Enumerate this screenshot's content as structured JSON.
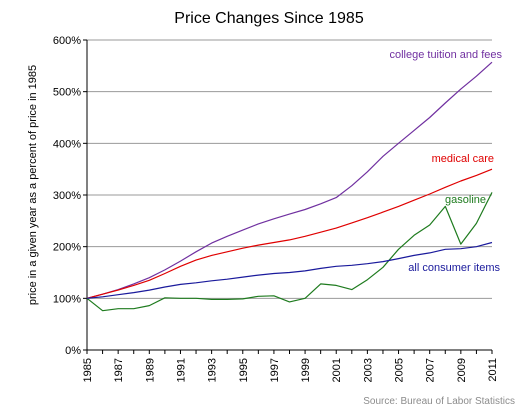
{
  "chart_data": {
    "type": "line",
    "title": "Price Changes Since 1985",
    "ylabel": "price in a given year as a percent of price in 1985",
    "xlabel": "",
    "ylim": [
      0,
      600
    ],
    "xlim": [
      1985,
      2011
    ],
    "grid": "horizontal",
    "y_ticks": [
      "0%",
      "100%",
      "200%",
      "300%",
      "400%",
      "500%",
      "600%"
    ],
    "x_ticks": [
      "1985",
      "1987",
      "1989",
      "1991",
      "1993",
      "1995",
      "1997",
      "1999",
      "2001",
      "2003",
      "2005",
      "2007",
      "2009",
      "2011"
    ],
    "x": [
      1985,
      1986,
      1987,
      1988,
      1989,
      1990,
      1991,
      1992,
      1993,
      1994,
      1995,
      1996,
      1997,
      1998,
      1999,
      2000,
      2001,
      2002,
      2003,
      2004,
      2005,
      2006,
      2007,
      2008,
      2009,
      2010,
      2011
    ],
    "series": [
      {
        "name": "college tuition and fees",
        "color": "#7030A0",
        "values": [
          100,
          108,
          117,
          128,
          140,
          155,
          172,
          190,
          207,
          220,
          232,
          244,
          254,
          263,
          272,
          283,
          295,
          318,
          345,
          375,
          400,
          425,
          450,
          478,
          505,
          530,
          557
        ]
      },
      {
        "name": "medical care",
        "color": "#E00000",
        "values": [
          100,
          108,
          116,
          125,
          135,
          148,
          162,
          174,
          183,
          190,
          197,
          203,
          208,
          213,
          220,
          228,
          236,
          246,
          256,
          267,
          278,
          290,
          302,
          315,
          327,
          338,
          350
        ]
      },
      {
        "name": "gasoline",
        "color": "#1E7B1E",
        "values": [
          100,
          76,
          80,
          80,
          86,
          101,
          100,
          100,
          98,
          98,
          99,
          104,
          105,
          93,
          100,
          128,
          125,
          117,
          136,
          160,
          195,
          222,
          242,
          278,
          205,
          245,
          305
        ]
      },
      {
        "name": "all consumer items",
        "color": "#1A1A9C",
        "values": [
          100,
          103,
          107,
          111,
          116,
          122,
          127,
          130,
          134,
          137,
          141,
          145,
          148,
          150,
          153,
          158,
          162,
          164,
          167,
          171,
          177,
          183,
          188,
          195,
          196,
          200,
          208
        ]
      }
    ],
    "source": "Source: Bureau of Labor Statistics"
  }
}
